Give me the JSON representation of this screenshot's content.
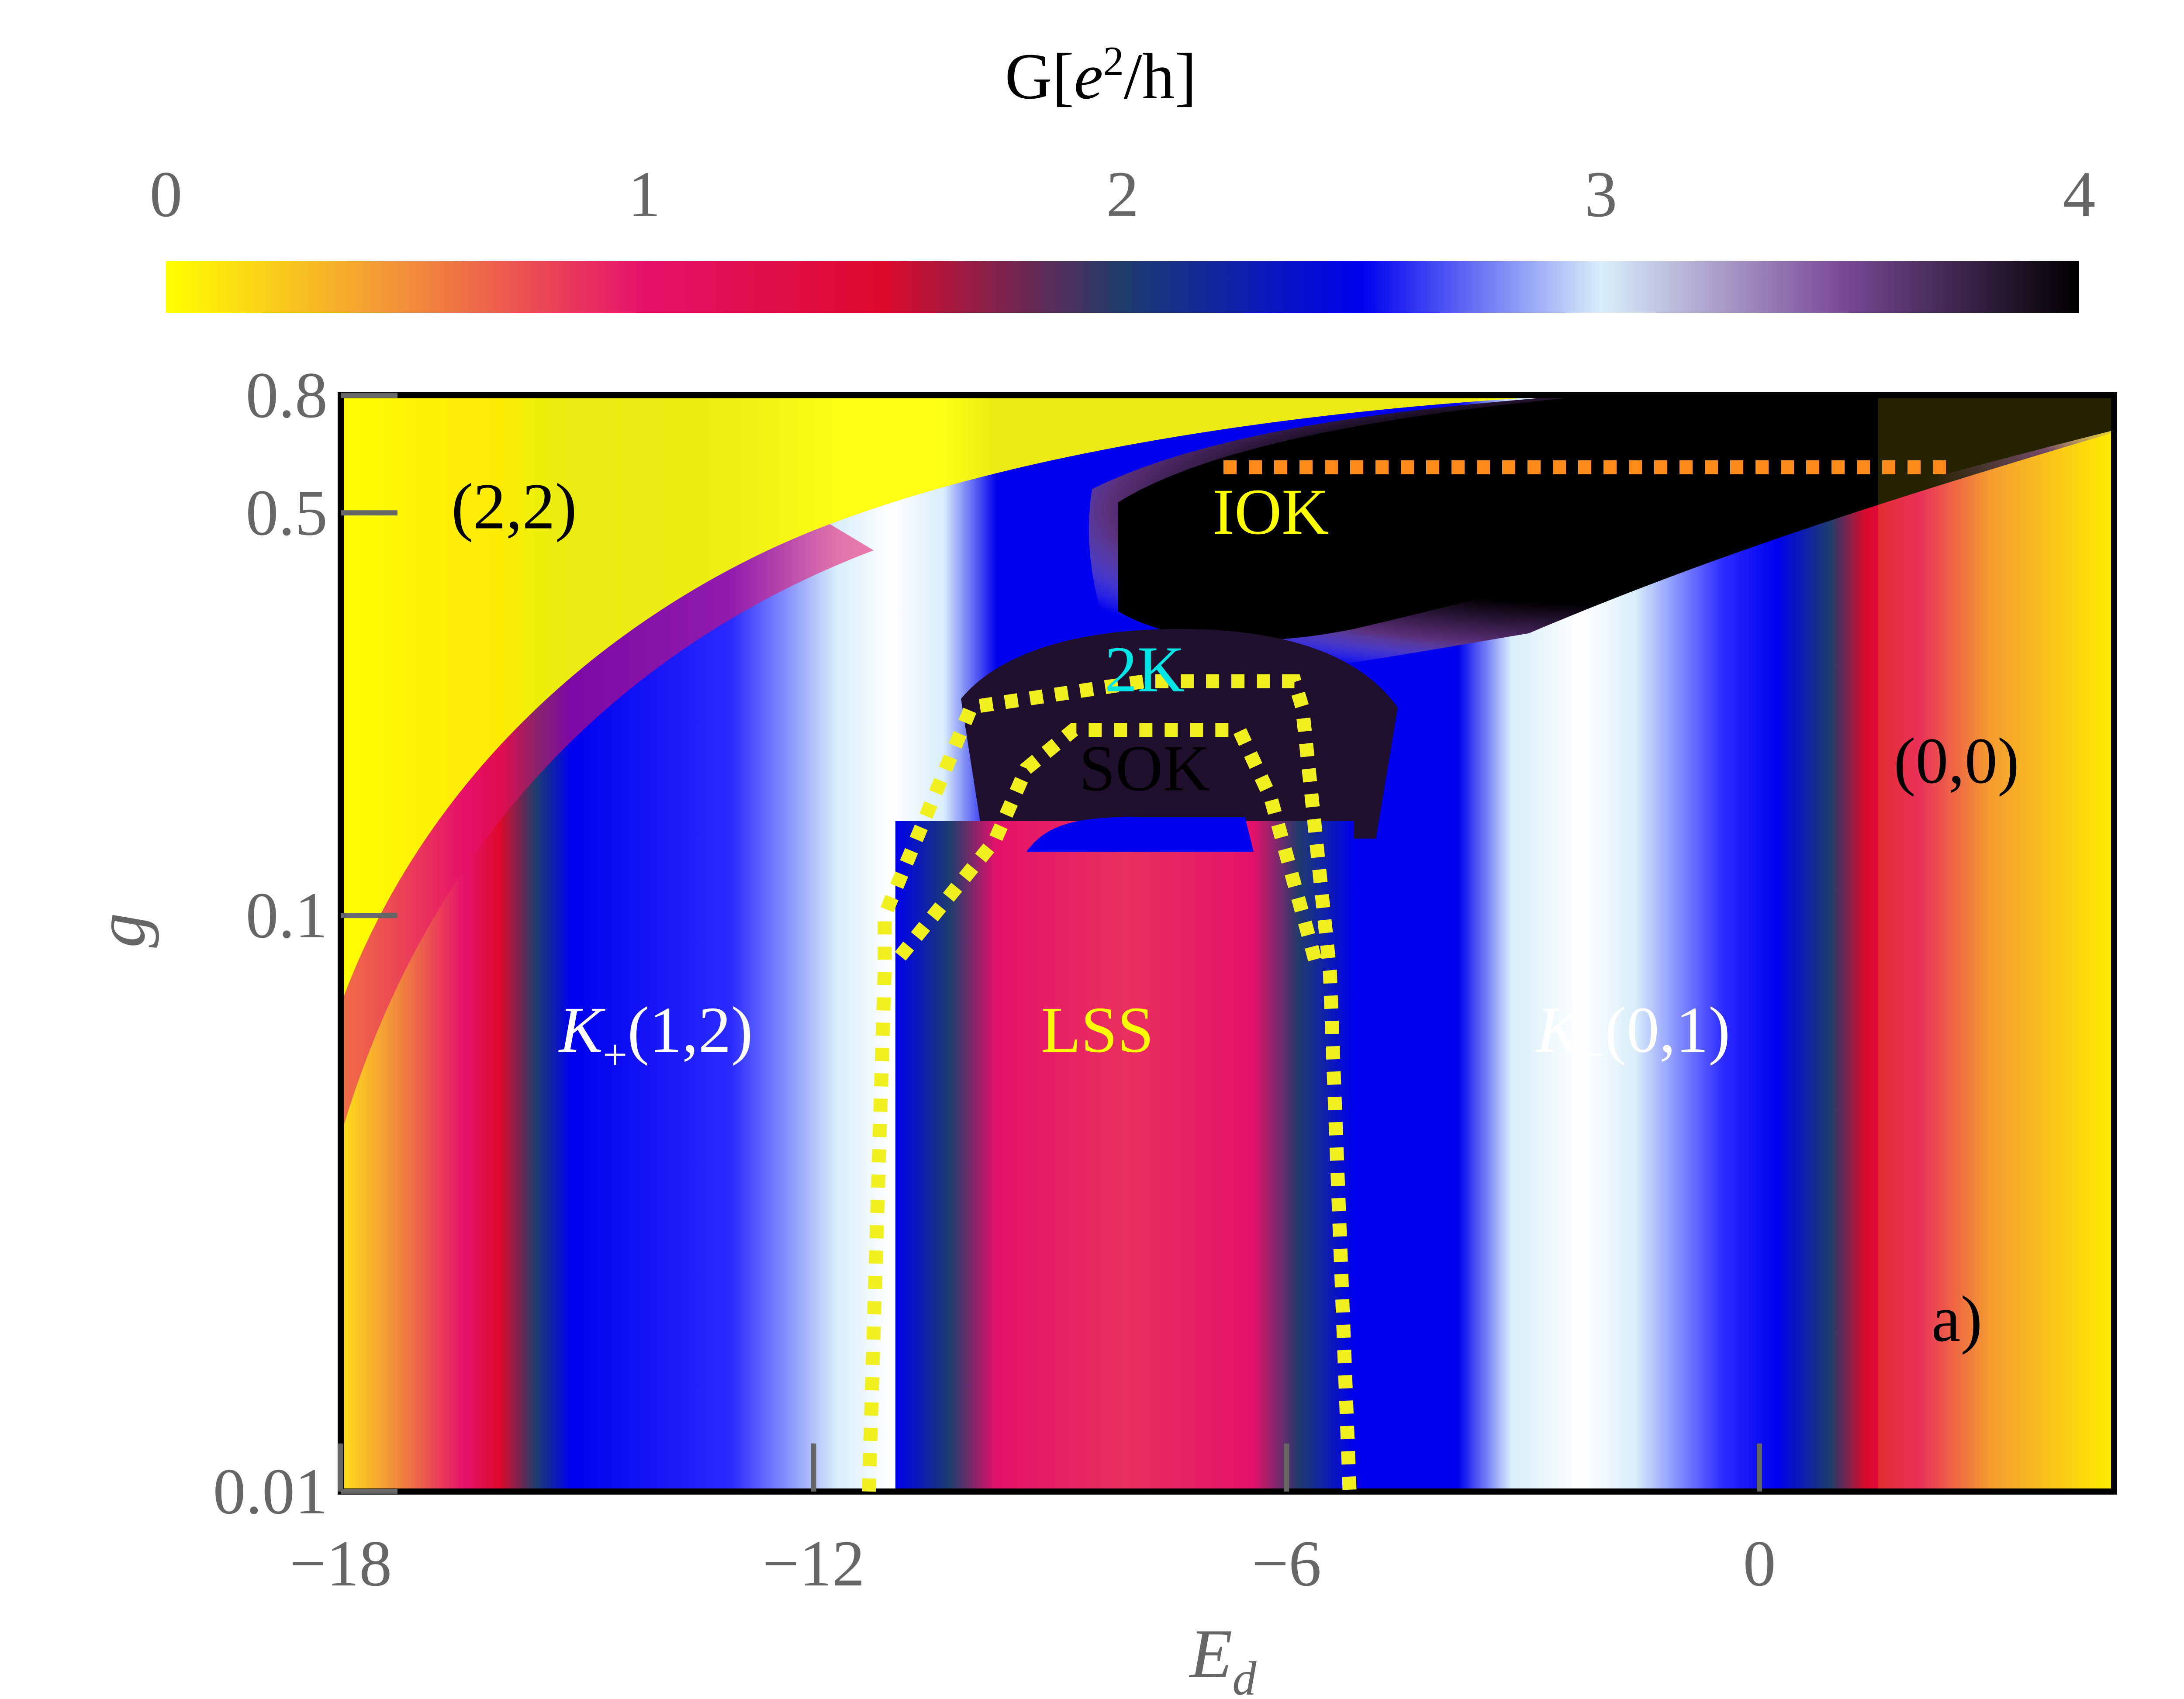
{
  "chart_data": {
    "type": "heatmap",
    "colorbar": {
      "title_prefix": "G[",
      "title_e": "e",
      "title_sup": "2",
      "title_suffix": "/h]",
      "range": [
        0,
        4
      ],
      "ticks": [
        "0",
        "1",
        "2",
        "3",
        "4"
      ],
      "tick_values": [
        0,
        1,
        2,
        3,
        4
      ],
      "stops": [
        "#ffff00",
        "#f28f3a",
        "#e5116a",
        "#dd0a2c",
        "#1f3c6c",
        "#0000ee",
        "#d8eefa",
        "#7a4a98",
        "#000000"
      ]
    },
    "xlabel_main": "E",
    "xlabel_sub": "d",
    "ylabel": "g",
    "x_ticks": [
      "−18",
      "−12",
      "−6",
      "0"
    ],
    "x_tick_values": [
      -18,
      -12,
      -6,
      0
    ],
    "xlim": [
      -18,
      4.5
    ],
    "y_ticks": [
      "0.8",
      "0.5",
      "0.1",
      "0.01"
    ],
    "y_tick_values": [
      0.8,
      0.5,
      0.1,
      0.01
    ],
    "ylim": [
      0.01,
      0.8
    ],
    "y_scale": "log",
    "panel_label": "a)",
    "regions": [
      {
        "label": "(2,2)",
        "color": "#000000"
      },
      {
        "label": "(0,0)",
        "color": "#000000"
      },
      {
        "label": "IOK",
        "color": "#ffff00"
      },
      {
        "label": "2K",
        "color": "#00e5e5"
      },
      {
        "label": "SOK",
        "color": "#000000"
      },
      {
        "label_italic": "K",
        "label_sub": "+",
        "label_rest": "(1,2)",
        "color": "#ffffff"
      },
      {
        "label": "LSS",
        "color": "#ffff00"
      },
      {
        "label_italic": "K",
        "label_sub": "−",
        "label_rest": "(0,1)",
        "color": "#ffffff"
      }
    ],
    "boundaries": [
      {
        "name": "IOK lower bound",
        "style": "dotted",
        "color": "#ff8c1a",
        "x": [
          -6.8,
          2.5
        ],
        "y": [
          0.6,
          0.6
        ]
      },
      {
        "name": "2K outer",
        "style": "dotted",
        "color": "#f0f020",
        "points": [
          [
            -11.3,
            0.01
          ],
          [
            -11.1,
            0.08
          ],
          [
            -11.1,
            0.1
          ],
          [
            -10,
            0.23
          ],
          [
            -7.8,
            0.255
          ],
          [
            -5.9,
            0.255
          ],
          [
            -5.8,
            0.23
          ],
          [
            -5.45,
            0.08
          ],
          [
            -5.2,
            0.01
          ]
        ]
      },
      {
        "name": "2K inner",
        "style": "dotted",
        "color": "#f0f020",
        "points": [
          [
            -10.9,
            0.085
          ],
          [
            -9.7,
            0.135
          ],
          [
            -9.3,
            0.18
          ],
          [
            -8.7,
            0.21
          ],
          [
            -6.6,
            0.21
          ],
          [
            -6.2,
            0.16
          ],
          [
            -5.7,
            0.09
          ],
          [
            -5.6,
            0.08
          ]
        ]
      }
    ]
  }
}
